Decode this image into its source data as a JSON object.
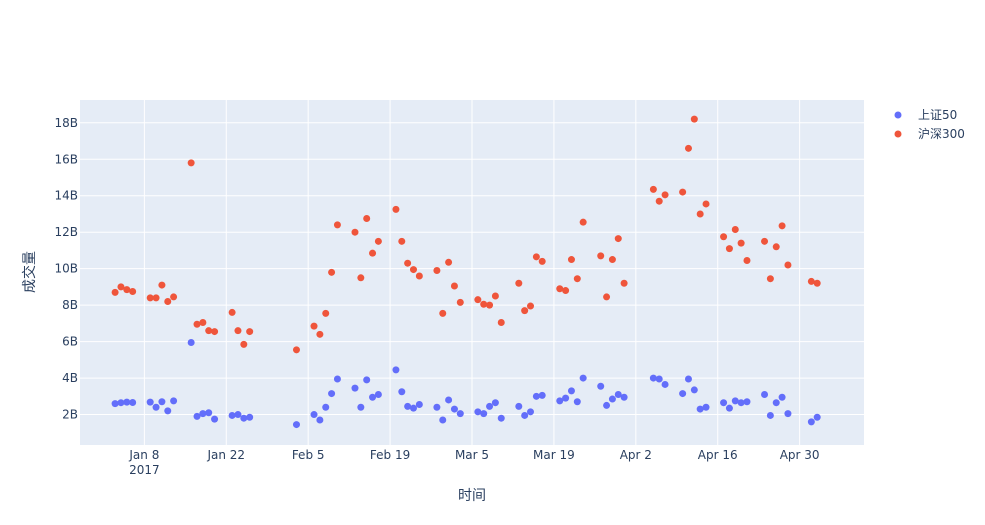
{
  "chart_data": {
    "type": "scatter",
    "xlabel": "时间",
    "ylabel": "成交量",
    "x_ticks": [
      {
        "date": "2017-01-08",
        "label": "Jan 8",
        "sub": "2017"
      },
      {
        "date": "2017-01-22",
        "label": "Jan 22",
        "sub": ""
      },
      {
        "date": "2017-02-05",
        "label": "Feb 5",
        "sub": ""
      },
      {
        "date": "2017-02-19",
        "label": "Feb 19",
        "sub": ""
      },
      {
        "date": "2017-03-05",
        "label": "Mar 5",
        "sub": ""
      },
      {
        "date": "2017-03-19",
        "label": "Mar 19",
        "sub": ""
      },
      {
        "date": "2017-04-02",
        "label": "Apr 2",
        "sub": ""
      },
      {
        "date": "2017-04-16",
        "label": "Apr 16",
        "sub": ""
      },
      {
        "date": "2017-04-30",
        "label": "Apr 30",
        "sub": ""
      }
    ],
    "y_ticks": [
      {
        "value": 2,
        "label": "2B"
      },
      {
        "value": 4,
        "label": "4B"
      },
      {
        "value": 6,
        "label": "6B"
      },
      {
        "value": 8,
        "label": "8B"
      },
      {
        "value": 10,
        "label": "10B"
      },
      {
        "value": 12,
        "label": "12B"
      },
      {
        "value": 14,
        "label": "14B"
      },
      {
        "value": 16,
        "label": "16B"
      },
      {
        "value": 18,
        "label": "18B"
      }
    ],
    "xlim": [
      "2016-12-28",
      "2017-05-11"
    ],
    "ylim": [
      0.33,
      19.25
    ],
    "y_unit": "billions",
    "grid": true,
    "legend": "top-right",
    "x": [
      "2017-01-03",
      "2017-01-04",
      "2017-01-05",
      "2017-01-06",
      "2017-01-09",
      "2017-01-10",
      "2017-01-11",
      "2017-01-12",
      "2017-01-13",
      "2017-01-16",
      "2017-01-17",
      "2017-01-18",
      "2017-01-19",
      "2017-01-20",
      "2017-01-23",
      "2017-01-24",
      "2017-01-25",
      "2017-01-26",
      "2017-02-03",
      "2017-02-06",
      "2017-02-07",
      "2017-02-08",
      "2017-02-09",
      "2017-02-10",
      "2017-02-13",
      "2017-02-14",
      "2017-02-15",
      "2017-02-16",
      "2017-02-17",
      "2017-02-20",
      "2017-02-21",
      "2017-02-22",
      "2017-02-23",
      "2017-02-24",
      "2017-02-27",
      "2017-02-28",
      "2017-03-01",
      "2017-03-02",
      "2017-03-03",
      "2017-03-06",
      "2017-03-07",
      "2017-03-08",
      "2017-03-09",
      "2017-03-10",
      "2017-03-13",
      "2017-03-14",
      "2017-03-15",
      "2017-03-16",
      "2017-03-17",
      "2017-03-20",
      "2017-03-21",
      "2017-03-22",
      "2017-03-23",
      "2017-03-24",
      "2017-03-27",
      "2017-03-28",
      "2017-03-29",
      "2017-03-30",
      "2017-03-31",
      "2017-04-05",
      "2017-04-06",
      "2017-04-07",
      "2017-04-10",
      "2017-04-11",
      "2017-04-12",
      "2017-04-13",
      "2017-04-14",
      "2017-04-17",
      "2017-04-18",
      "2017-04-19",
      "2017-04-20",
      "2017-04-21",
      "2017-04-24",
      "2017-04-25",
      "2017-04-26",
      "2017-04-27",
      "2017-04-28",
      "2017-05-02",
      "2017-05-03"
    ],
    "series": [
      {
        "name": "上证50",
        "color": "#636efa",
        "values": [
          2.6,
          2.65,
          2.68,
          2.66,
          2.68,
          2.4,
          2.7,
          2.2,
          2.75,
          5.95,
          1.9,
          2.05,
          2.1,
          1.75,
          1.95,
          2.0,
          1.8,
          1.85,
          1.45,
          2.0,
          1.7,
          2.4,
          3.15,
          3.95,
          3.45,
          2.4,
          3.9,
          2.95,
          3.1,
          4.45,
          3.25,
          2.45,
          2.35,
          2.55,
          2.4,
          1.7,
          2.8,
          2.3,
          2.05,
          2.15,
          2.05,
          2.45,
          2.65,
          1.8,
          2.45,
          1.95,
          2.15,
          3.0,
          3.05,
          2.75,
          2.9,
          3.3,
          2.7,
          4.0,
          3.55,
          2.5,
          2.85,
          3.1,
          2.95,
          4.0,
          3.95,
          3.65,
          3.15,
          3.95,
          3.35,
          2.3,
          2.4,
          2.65,
          2.35,
          2.75,
          2.65,
          2.7,
          3.1,
          1.95,
          2.65,
          2.95,
          2.05,
          1.6,
          1.85
        ]
      },
      {
        "name": "沪深300",
        "color": "#ef553b",
        "values": [
          8.7,
          9.0,
          8.85,
          8.75,
          8.4,
          8.4,
          9.1,
          8.2,
          8.45,
          15.8,
          6.95,
          7.05,
          6.6,
          6.55,
          7.6,
          6.6,
          5.85,
          6.55,
          5.55,
          6.85,
          6.4,
          7.55,
          9.8,
          12.4,
          12.0,
          9.5,
          12.75,
          10.85,
          11.5,
          13.25,
          11.5,
          10.3,
          9.95,
          9.6,
          9.9,
          7.55,
          10.35,
          9.05,
          8.15,
          8.3,
          8.05,
          8.0,
          8.5,
          7.05,
          9.2,
          7.7,
          7.95,
          10.65,
          10.4,
          8.9,
          8.8,
          10.5,
          9.45,
          12.55,
          10.7,
          8.45,
          10.5,
          11.65,
          9.2,
          14.35,
          13.7,
          14.05,
          14.2,
          16.6,
          18.2,
          13.0,
          13.55,
          11.75,
          11.1,
          12.15,
          11.4,
          10.45,
          11.5,
          9.45,
          11.2,
          12.35,
          10.2,
          9.3,
          9.2
        ]
      }
    ]
  }
}
